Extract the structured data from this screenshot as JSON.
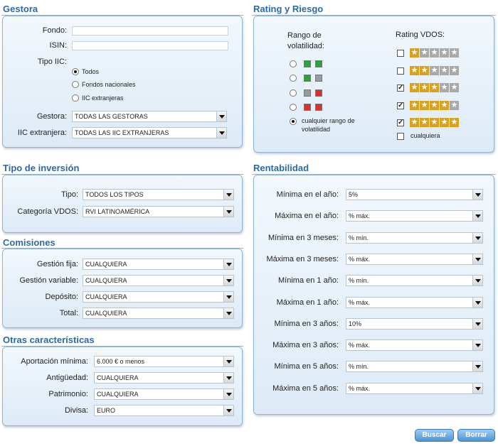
{
  "gestora": {
    "title": "Gestora",
    "fondo_label": "Fondo:",
    "isin_label": "ISIN:",
    "tipo_label": "Tipo IIC:",
    "radios": [
      "Todos",
      "Fondos nacionales",
      "IIC extranjeras"
    ],
    "gestora_label": "Gestora:",
    "gestora_value": "TODAS LAS GESTORAS",
    "iic_label": "IIC extranjera:",
    "iic_value": "TODAS LAS IIC EXTRANJERAS"
  },
  "rating": {
    "title": "Rating y Riesgo",
    "rango_label": "Rango de volatilidad:",
    "rating_label": "Rating VDOS:",
    "cualquier_rango": "cualquier rango de volatilidad",
    "cualquiera": "cualquiera",
    "colors": {
      "green": "#2aa33a",
      "gray": "#9a9a9a",
      "red": "#d6312b",
      "gold": "#d9a21e",
      "star_gray": "#a9a9a9"
    },
    "star_rows": [
      {
        "filled": 1,
        "checked": false
      },
      {
        "filled": 2,
        "checked": false
      },
      {
        "filled": 3,
        "checked": true
      },
      {
        "filled": 4,
        "checked": true
      },
      {
        "filled": 5,
        "checked": true
      }
    ]
  },
  "tipo_inversion": {
    "title": "Tipo de inversión",
    "tipo_label": "Tipo:",
    "tipo_value": "TODOS LOS TIPOS",
    "categoria_label": "Categoría VDOS:",
    "categoria_value": "RVI LATINOAMÉRICA"
  },
  "comisiones": {
    "title": "Comisiones",
    "rows": [
      {
        "label": "Gestión fija:",
        "value": "CUALQUIERA"
      },
      {
        "label": "Gestión variable:",
        "value": "CUALQUIERA"
      },
      {
        "label": "Depósito:",
        "value": "CUALQUIERA"
      },
      {
        "label": "Total:",
        "value": "CUALQUIERA"
      }
    ]
  },
  "otras": {
    "title": "Otras características",
    "rows": [
      {
        "label": "Aportación mínima:",
        "value": "6.000 € o menos"
      },
      {
        "label": "Antigüedad:",
        "value": "CUALQUIERA"
      },
      {
        "label": "Patrimonio:",
        "value": "CUALQUIERA"
      },
      {
        "label": "Divisa:",
        "value": "EURO"
      }
    ]
  },
  "rentabilidad": {
    "title": "Rentabilidad",
    "rows": [
      {
        "label": "Mínima en el año:",
        "value": "5%"
      },
      {
        "label": "Máxima en el año:",
        "value": "% máx."
      },
      {
        "label": "Mínima en 3 meses:",
        "value": "% mín."
      },
      {
        "label": "Máxima en 3 meses:",
        "value": "% máx."
      },
      {
        "label": "Mínima en 1 año:",
        "value": "% mín."
      },
      {
        "label": "Máxima en 1 año:",
        "value": "% máx."
      },
      {
        "label": "Mínima en 3 años:",
        "value": "10%"
      },
      {
        "label": "Máxima en 3 años:",
        "value": "% máx."
      },
      {
        "label": "Mínima en 5 años:",
        "value": "% mín."
      },
      {
        "label": "Máxima en 5 años:",
        "value": "% máx."
      }
    ]
  },
  "buttons": {
    "buscar": "Buscar",
    "borrar": "Borrar"
  }
}
